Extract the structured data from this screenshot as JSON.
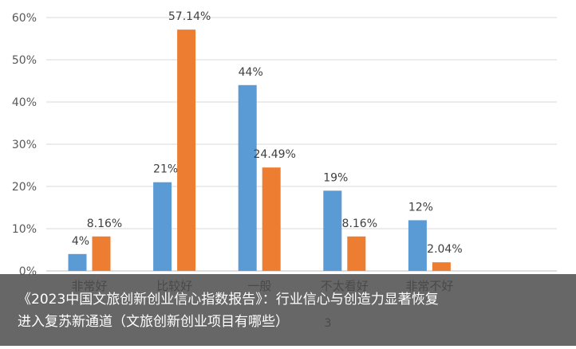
{
  "chart_data": {
    "type": "bar",
    "categories": [
      "非常好",
      "比较好",
      "一般",
      "不太看好",
      "非常不好"
    ],
    "series": [
      {
        "values": [
          4,
          21,
          44,
          19,
          12
        ],
        "labels": [
          "4%",
          "21%",
          "44%",
          "19%",
          "12%"
        ],
        "color": "#5b9bd5"
      },
      {
        "values": [
          8.16,
          57.14,
          24.49,
          8.16,
          2.04
        ],
        "labels": [
          "8.16%",
          "57.14%",
          "24.49%",
          "8.16%",
          "2.04%"
        ],
        "color": "#ed7d31"
      }
    ],
    "ylim": [
      0,
      60
    ],
    "yticks": [
      "0%",
      "10%",
      "20%",
      "30%",
      "40%",
      "50%",
      "60%"
    ],
    "grid": true,
    "partial_legend_text": "3"
  },
  "caption": {
    "line1": "《2023中国文旅创新创业信心指数报告》：行业信心与创造力显著恢复",
    "line2": "进入复苏新通道（文旅创新创业项目有哪些）"
  }
}
